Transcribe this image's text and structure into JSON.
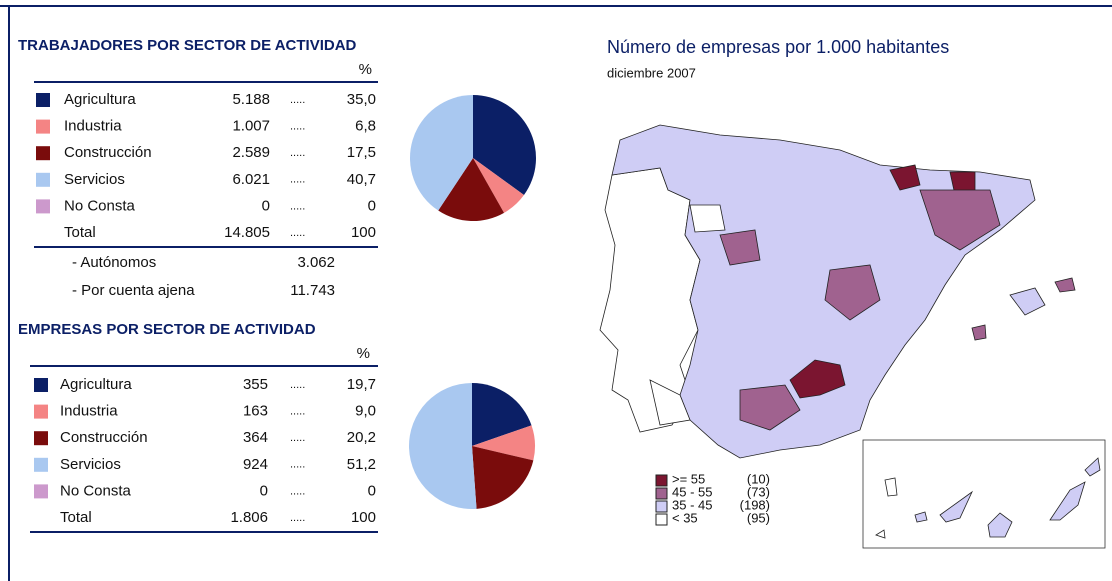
{
  "trabajadores": {
    "title": "TRABAJADORES POR SECTOR DE ACTIVIDAD",
    "pct_header": "%",
    "leader": ".....",
    "rows": [
      {
        "name": "Agricultura",
        "value": "5.188",
        "pct": 35.0,
        "pct_label": "35,0",
        "color": "#0b1f66"
      },
      {
        "name": "Industria",
        "value": "1.007",
        "pct": 6.8,
        "pct_label": "6,8",
        "color": "#f48484"
      },
      {
        "name": "Construcción",
        "value": "2.589",
        "pct": 17.5,
        "pct_label": "17,5",
        "color": "#7a0c0c"
      },
      {
        "name": "Servicios",
        "value": "6.021",
        "pct": 40.7,
        "pct_label": "40,7",
        "color": "#a9c8f0"
      },
      {
        "name": "No Consta",
        "value": "0",
        "pct": 0,
        "pct_label": "0",
        "color": "#cc99cc"
      }
    ],
    "total": {
      "name": "Total",
      "value": "14.805",
      "pct": "100"
    },
    "sub": [
      {
        "name": "- Autónomos",
        "value": "3.062"
      },
      {
        "name": "- Por cuenta ajena",
        "value": "11.743"
      }
    ]
  },
  "empresas": {
    "title": "EMPRESAS POR SECTOR DE ACTIVIDAD",
    "pct_header": "%",
    "leader": ".....",
    "rows": [
      {
        "name": "Agricultura",
        "value": "355",
        "pct": 19.7,
        "pct_label": "19,7",
        "color": "#0b1f66"
      },
      {
        "name": "Industria",
        "value": "163",
        "pct": 9.0,
        "pct_label": "9,0",
        "color": "#f48484"
      },
      {
        "name": "Construcción",
        "value": "364",
        "pct": 20.2,
        "pct_label": "20,2",
        "color": "#7a0c0c"
      },
      {
        "name": "Servicios",
        "value": "924",
        "pct": 51.2,
        "pct_label": "51,2",
        "color": "#a9c8f0"
      },
      {
        "name": "No Consta",
        "value": "0",
        "pct": 0,
        "pct_label": "0",
        "color": "#cc99cc"
      }
    ],
    "total": {
      "name": "Total",
      "value": "1.806",
      "pct": "100"
    }
  },
  "map": {
    "title": "Número de empresas por 1.000 habitantes",
    "subtitle": "diciembre 2007",
    "legend": [
      {
        "range": ">= 55",
        "count": "(10)",
        "color": "#7b1530"
      },
      {
        "range": "45 - 55",
        "count": "(73)",
        "color": "#a0628f"
      },
      {
        "range": "35 - 45",
        "count": "(198)",
        "color": "#cfcdf5"
      },
      {
        "range": "< 35",
        "count": "(95)",
        "color": "#ffffff"
      }
    ]
  }
}
